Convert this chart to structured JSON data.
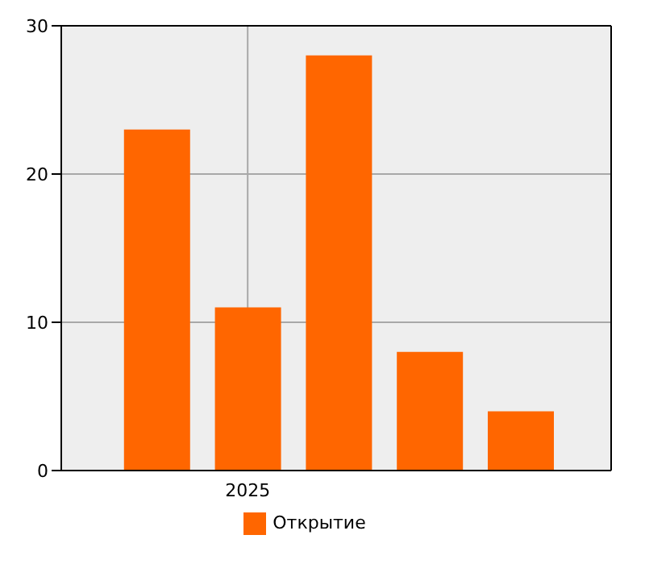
{
  "chart_data": {
    "type": "bar",
    "categories": [
      null,
      "2025",
      null,
      null,
      null
    ],
    "series": [
      {
        "name": "Открытие",
        "color": "#ff6600",
        "values": [
          23,
          11,
          28,
          8,
          4
        ]
      }
    ],
    "ylim": [
      0,
      30
    ],
    "yticks": [
      0,
      10,
      20,
      30
    ],
    "grid": true,
    "legend": "bottom"
  }
}
